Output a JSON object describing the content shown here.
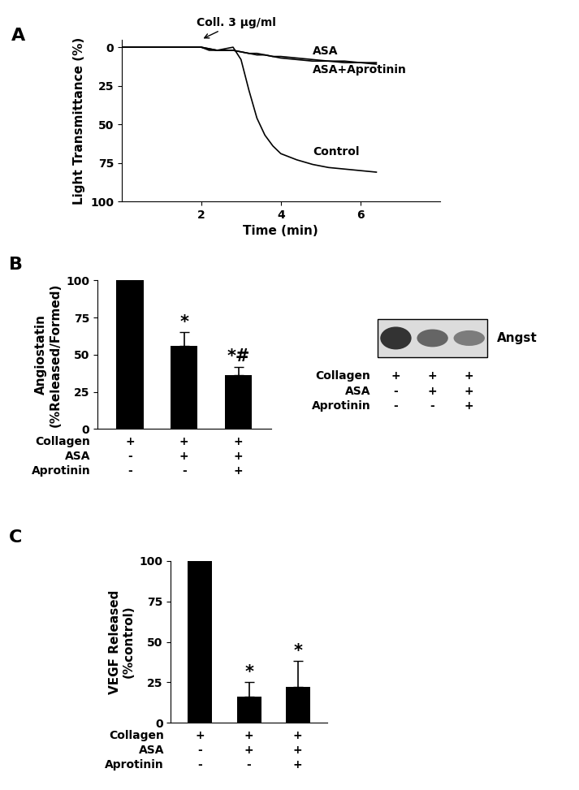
{
  "chart_data": [
    {
      "panel": "A",
      "type": "line",
      "x": [
        0,
        0.5,
        1,
        1.5,
        2,
        2.2,
        2.4,
        2.6,
        2.8,
        3.0,
        3.2,
        3.4,
        3.6,
        3.8,
        4.0,
        4.4,
        4.8,
        5.2,
        5.6,
        6.0,
        6.4
      ],
      "xlabel": "Time (min)",
      "ylabel": "Light Transmittance (%)",
      "xlim": [
        0,
        8
      ],
      "ylim": [
        100,
        -5
      ],
      "xticks": [
        2,
        4,
        6
      ],
      "yticks": [
        0,
        25,
        50,
        75,
        100
      ],
      "series": [
        {
          "name": "ASA",
          "color": "#000000",
          "values": [
            0,
            0,
            0,
            0,
            0,
            1,
            2,
            2,
            2,
            3,
            4,
            5,
            5,
            6,
            7,
            8,
            9,
            9,
            10,
            10,
            10
          ]
        },
        {
          "name": "ASA+Aprotinin",
          "color": "#000000",
          "values": [
            0,
            0,
            0,
            0,
            0,
            1,
            2,
            2,
            2,
            3,
            4,
            4,
            5,
            6,
            6,
            7,
            8,
            9,
            9,
            10,
            11
          ]
        },
        {
          "name": "Control",
          "color": "#000000",
          "values": [
            0,
            0,
            0,
            0,
            0,
            2,
            2,
            1,
            0,
            8,
            28,
            46,
            57,
            64,
            69,
            73,
            76,
            78,
            79,
            80,
            81
          ]
        }
      ],
      "annotations": [
        {
          "text": "Coll. 3 μg/ml",
          "x": 2
        }
      ]
    },
    {
      "panel": "B",
      "type": "bar",
      "categories": [
        null,
        null,
        null
      ],
      "values": [
        100,
        56,
        36
      ],
      "errors": [
        null,
        9,
        6
      ],
      "value_marks": [
        null,
        "*",
        "*#"
      ],
      "color": "#000000",
      "ylabel": "Angiostatin\n(%Released/Formed)",
      "ylim": [
        0,
        100
      ],
      "yticks": [
        0,
        25,
        50,
        75,
        100
      ],
      "conditions": [
        {
          "name": "Collagen",
          "marks": [
            "+",
            "+",
            "+"
          ]
        },
        {
          "name": "ASA",
          "marks": [
            "-",
            "+",
            "+"
          ]
        },
        {
          "name": "Aprotinin",
          "marks": [
            "-",
            "-",
            "+"
          ]
        }
      ],
      "blot": {
        "label": "Angst",
        "conditions": [
          {
            "name": "Collagen",
            "marks": [
              "+",
              "+",
              "+"
            ]
          },
          {
            "name": "ASA",
            "marks": [
              "-",
              "+",
              "+"
            ]
          },
          {
            "name": "Aprotinin",
            "marks": [
              "-",
              "-",
              "+"
            ]
          }
        ]
      }
    },
    {
      "panel": "C",
      "type": "bar",
      "categories": [
        null,
        null,
        null
      ],
      "values": [
        100,
        16,
        22
      ],
      "errors": [
        null,
        9,
        16
      ],
      "value_marks": [
        null,
        "*",
        "*"
      ],
      "color": "#000000",
      "ylabel": "VEGF Released\n(%control)",
      "ylim": [
        0,
        100
      ],
      "yticks": [
        0,
        25,
        50,
        75,
        100
      ],
      "conditions": [
        {
          "name": "Collagen",
          "marks": [
            "+",
            "+",
            "+"
          ]
        },
        {
          "name": "ASA",
          "marks": [
            "-",
            "+",
            "+"
          ]
        },
        {
          "name": "Aprotinin",
          "marks": [
            "-",
            "-",
            "+"
          ]
        }
      ]
    }
  ]
}
